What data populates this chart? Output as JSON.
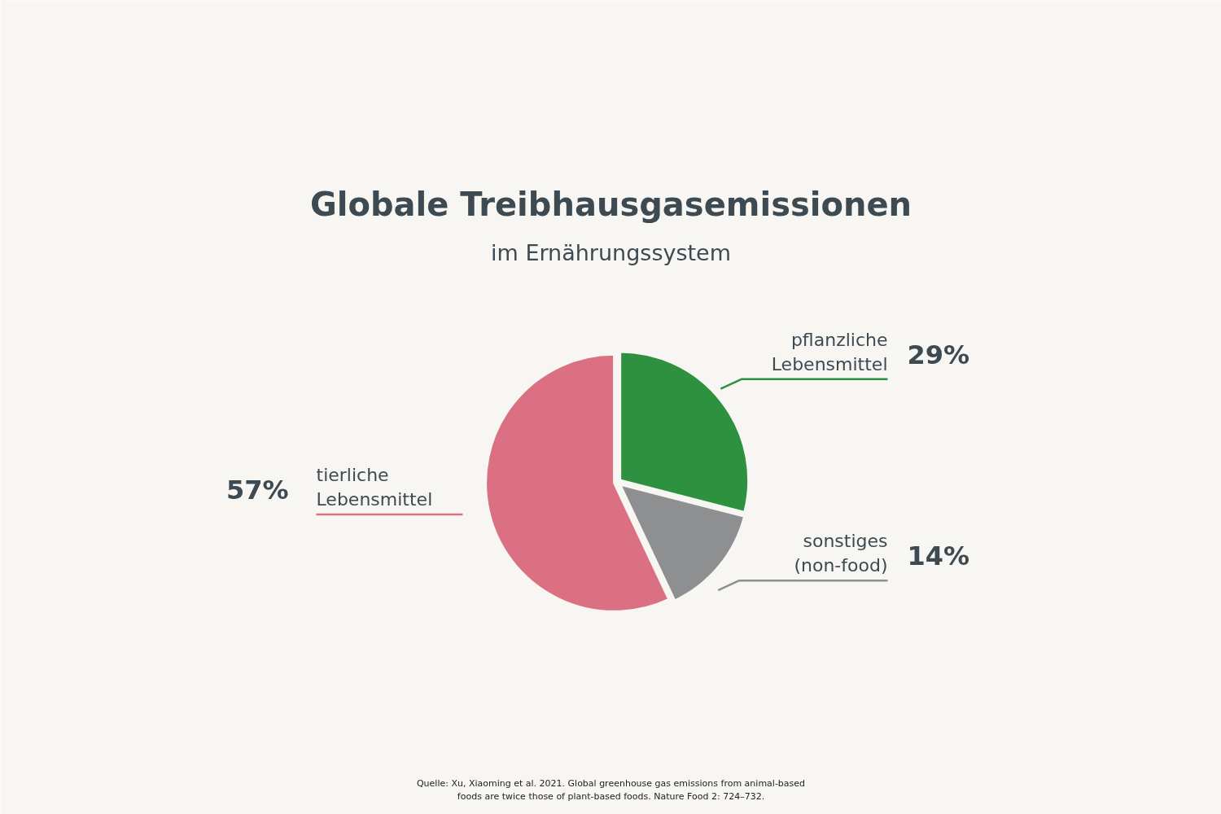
{
  "chart_data": {
    "type": "pie",
    "title": "Globale Treibhausgasemissionen",
    "subtitle": "im Ernährungssystem",
    "categories": [
      "pflanzliche Lebensmittel",
      "sonstiges (non-food)",
      "tierliche Lebensmittel"
    ],
    "values": [
      29,
      14,
      57
    ],
    "colors": [
      "#2e9140",
      "#8e8f91",
      "#db7083"
    ],
    "value_labels": [
      "29%",
      "14%",
      "57%"
    ],
    "annotations": [
      "Quelle: Xu, Xiaoming et al. 2021. Global greenhouse gas emissions from animal-based foods are twice those of plant-based foods. Nature Food 2: 724–732."
    ]
  }
}
